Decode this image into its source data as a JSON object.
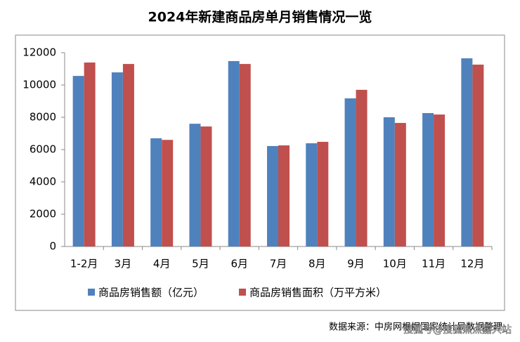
{
  "chart_data": {
    "type": "bar",
    "title": "2024年新建商品房单月销售情况一览",
    "categories": [
      "1-2月",
      "3月",
      "4月",
      "5月",
      "6月",
      "7月",
      "8月",
      "9月",
      "10月",
      "11月",
      "12月"
    ],
    "series": [
      {
        "name": "商品房销售额（亿元）",
        "color": "#4f81bd",
        "values": [
          10560,
          10780,
          6700,
          7600,
          11480,
          6220,
          6390,
          9170,
          8000,
          8260,
          11650
        ]
      },
      {
        "name": "商品房销售面积（万平方米）",
        "color": "#c0504d",
        "values": [
          11390,
          11300,
          6600,
          7430,
          11300,
          6260,
          6480,
          9700,
          7650,
          8170,
          11260
        ]
      }
    ],
    "ylim": [
      0,
      12000
    ],
    "yticks": [
      0,
      2000,
      4000,
      6000,
      8000,
      10000,
      12000
    ],
    "legend": "bottom",
    "source": "数据来源：中房网根据国家统计局数据整理",
    "watermark": "搜狐号@搜狐焦点嘉兴站"
  }
}
